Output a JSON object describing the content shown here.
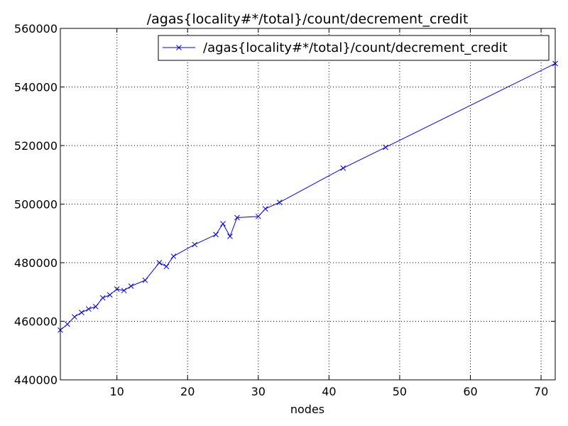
{
  "chart_data": {
    "type": "line",
    "title": "/agas{locality#*/total}/count/decrement_credit",
    "xlabel": "nodes",
    "ylabel": "",
    "xlim": [
      2,
      72
    ],
    "ylim": [
      440000,
      560000
    ],
    "xticks": [
      10,
      20,
      30,
      40,
      50,
      60,
      70
    ],
    "yticks": [
      440000,
      460000,
      480000,
      500000,
      520000,
      540000,
      560000
    ],
    "grid": true,
    "legend_position": "top-right",
    "series": [
      {
        "name": "/agas{locality#*/total}/count/decrement_credit",
        "color": "#0000ff",
        "marker": "x",
        "x": [
          2,
          3,
          4,
          5,
          6,
          7,
          8,
          9,
          10,
          11,
          12,
          14,
          16,
          17,
          18,
          21,
          24,
          25,
          26,
          27,
          30,
          31,
          33,
          42,
          48,
          72
        ],
        "y": [
          457000,
          459000,
          461500,
          463000,
          464200,
          465000,
          468000,
          469000,
          471000,
          470500,
          472000,
          474000,
          480000,
          478700,
          482200,
          486200,
          489600,
          493300,
          489000,
          495400,
          495800,
          498400,
          500600,
          512300,
          519400,
          548000
        ]
      }
    ]
  }
}
